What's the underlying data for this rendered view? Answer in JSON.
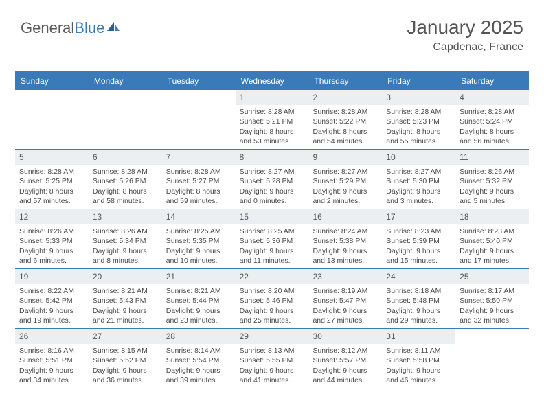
{
  "logo": {
    "text_a": "General",
    "text_b": "Blue"
  },
  "title": "January 2025",
  "location": "Capdenac, France",
  "colors": {
    "brand": "#3a7ab8",
    "header_bg": "#3a7ab8",
    "header_text": "#ffffff",
    "daynum_bg": "#eceff1",
    "text": "#4a4a4a",
    "rule": "#3a7ab8",
    "background": "#ffffff"
  },
  "typography": {
    "title_fontsize": 28,
    "location_fontsize": 16,
    "dayhead_fontsize": 12,
    "daynum_fontsize": 12,
    "cell_fontsize": 10.5
  },
  "day_headers": [
    "Sunday",
    "Monday",
    "Tuesday",
    "Wednesday",
    "Thursday",
    "Friday",
    "Saturday"
  ],
  "weeks": [
    [
      {
        "n": "",
        "empty": true
      },
      {
        "n": "",
        "empty": true
      },
      {
        "n": "",
        "empty": true
      },
      {
        "n": "1",
        "sunrise": "8:28 AM",
        "sunset": "5:21 PM",
        "dl_h": "8",
        "dl_m": "53"
      },
      {
        "n": "2",
        "sunrise": "8:28 AM",
        "sunset": "5:22 PM",
        "dl_h": "8",
        "dl_m": "54"
      },
      {
        "n": "3",
        "sunrise": "8:28 AM",
        "sunset": "5:23 PM",
        "dl_h": "8",
        "dl_m": "55"
      },
      {
        "n": "4",
        "sunrise": "8:28 AM",
        "sunset": "5:24 PM",
        "dl_h": "8",
        "dl_m": "56"
      }
    ],
    [
      {
        "n": "5",
        "sunrise": "8:28 AM",
        "sunset": "5:25 PM",
        "dl_h": "8",
        "dl_m": "57"
      },
      {
        "n": "6",
        "sunrise": "8:28 AM",
        "sunset": "5:26 PM",
        "dl_h": "8",
        "dl_m": "58"
      },
      {
        "n": "7",
        "sunrise": "8:28 AM",
        "sunset": "5:27 PM",
        "dl_h": "8",
        "dl_m": "59"
      },
      {
        "n": "8",
        "sunrise": "8:27 AM",
        "sunset": "5:28 PM",
        "dl_h": "9",
        "dl_m": "0"
      },
      {
        "n": "9",
        "sunrise": "8:27 AM",
        "sunset": "5:29 PM",
        "dl_h": "9",
        "dl_m": "2"
      },
      {
        "n": "10",
        "sunrise": "8:27 AM",
        "sunset": "5:30 PM",
        "dl_h": "9",
        "dl_m": "3"
      },
      {
        "n": "11",
        "sunrise": "8:26 AM",
        "sunset": "5:32 PM",
        "dl_h": "9",
        "dl_m": "5"
      }
    ],
    [
      {
        "n": "12",
        "sunrise": "8:26 AM",
        "sunset": "5:33 PM",
        "dl_h": "9",
        "dl_m": "6"
      },
      {
        "n": "13",
        "sunrise": "8:26 AM",
        "sunset": "5:34 PM",
        "dl_h": "9",
        "dl_m": "8"
      },
      {
        "n": "14",
        "sunrise": "8:25 AM",
        "sunset": "5:35 PM",
        "dl_h": "9",
        "dl_m": "10"
      },
      {
        "n": "15",
        "sunrise": "8:25 AM",
        "sunset": "5:36 PM",
        "dl_h": "9",
        "dl_m": "11"
      },
      {
        "n": "16",
        "sunrise": "8:24 AM",
        "sunset": "5:38 PM",
        "dl_h": "9",
        "dl_m": "13"
      },
      {
        "n": "17",
        "sunrise": "8:23 AM",
        "sunset": "5:39 PM",
        "dl_h": "9",
        "dl_m": "15"
      },
      {
        "n": "18",
        "sunrise": "8:23 AM",
        "sunset": "5:40 PM",
        "dl_h": "9",
        "dl_m": "17"
      }
    ],
    [
      {
        "n": "19",
        "sunrise": "8:22 AM",
        "sunset": "5:42 PM",
        "dl_h": "9",
        "dl_m": "19"
      },
      {
        "n": "20",
        "sunrise": "8:21 AM",
        "sunset": "5:43 PM",
        "dl_h": "9",
        "dl_m": "21"
      },
      {
        "n": "21",
        "sunrise": "8:21 AM",
        "sunset": "5:44 PM",
        "dl_h": "9",
        "dl_m": "23"
      },
      {
        "n": "22",
        "sunrise": "8:20 AM",
        "sunset": "5:46 PM",
        "dl_h": "9",
        "dl_m": "25"
      },
      {
        "n": "23",
        "sunrise": "8:19 AM",
        "sunset": "5:47 PM",
        "dl_h": "9",
        "dl_m": "27"
      },
      {
        "n": "24",
        "sunrise": "8:18 AM",
        "sunset": "5:48 PM",
        "dl_h": "9",
        "dl_m": "29"
      },
      {
        "n": "25",
        "sunrise": "8:17 AM",
        "sunset": "5:50 PM",
        "dl_h": "9",
        "dl_m": "32"
      }
    ],
    [
      {
        "n": "26",
        "sunrise": "8:16 AM",
        "sunset": "5:51 PM",
        "dl_h": "9",
        "dl_m": "34"
      },
      {
        "n": "27",
        "sunrise": "8:15 AM",
        "sunset": "5:52 PM",
        "dl_h": "9",
        "dl_m": "36"
      },
      {
        "n": "28",
        "sunrise": "8:14 AM",
        "sunset": "5:54 PM",
        "dl_h": "9",
        "dl_m": "39"
      },
      {
        "n": "29",
        "sunrise": "8:13 AM",
        "sunset": "5:55 PM",
        "dl_h": "9",
        "dl_m": "41"
      },
      {
        "n": "30",
        "sunrise": "8:12 AM",
        "sunset": "5:57 PM",
        "dl_h": "9",
        "dl_m": "44"
      },
      {
        "n": "31",
        "sunrise": "8:11 AM",
        "sunset": "5:58 PM",
        "dl_h": "9",
        "dl_m": "46"
      },
      {
        "n": "",
        "empty": true
      }
    ]
  ],
  "labels": {
    "sunrise": "Sunrise:",
    "sunset": "Sunset:",
    "daylight": "Daylight:",
    "hours": "hours",
    "and": "and",
    "minutes": "minutes."
  }
}
